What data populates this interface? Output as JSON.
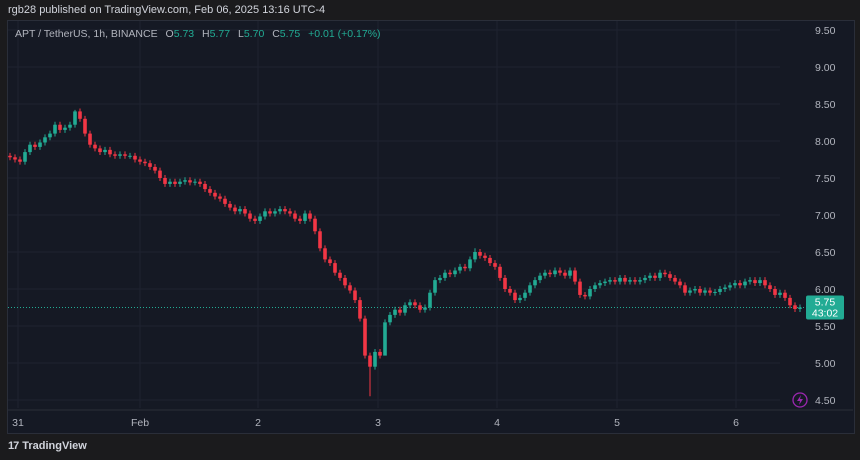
{
  "header": {
    "published": "rgb28 published on TradingView.com, Feb 06, 2025 13:16 UTC-4"
  },
  "legend": {
    "symbol": "APT / TetherUS, 1h, BINANCE",
    "o_label": "O",
    "o": "5.73",
    "h_label": "H",
    "h": "5.77",
    "l_label": "L",
    "l": "5.70",
    "c_label": "C",
    "c": "5.75",
    "change": "+0.01 (+0.17%)"
  },
  "price_tag": {
    "price": "5.75",
    "countdown": "43:02"
  },
  "footer": {
    "brand": "TradingView"
  },
  "colors": {
    "up": "#22ab94",
    "down": "#f23645",
    "bg": "#151924",
    "tag": "#22ab94",
    "bolt": "#9c27b0"
  },
  "chart_data": {
    "type": "candlestick",
    "title": "APT / TetherUS, 1h, BINANCE",
    "ylim": [
      4.3,
      9.6
    ],
    "y_ticks": [
      "9.50",
      "9.00",
      "8.50",
      "8.00",
      "7.50",
      "7.00",
      "6.50",
      "6.00",
      "5.50",
      "5.00",
      "4.50"
    ],
    "x_ticks": [
      {
        "label": "31",
        "index": 1.6
      },
      {
        "label": "Feb",
        "index": 26
      },
      {
        "label": "2",
        "index": 49.6
      },
      {
        "label": "3",
        "index": 73.6
      },
      {
        "label": "4",
        "index": 97.4
      },
      {
        "label": "5",
        "index": 121.4
      },
      {
        "label": "6",
        "index": 145.2
      }
    ],
    "open_first": 7.8,
    "closes": [
      7.78,
      7.75,
      7.72,
      7.85,
      7.95,
      7.92,
      7.98,
      8.05,
      8.1,
      8.22,
      8.15,
      8.18,
      8.22,
      8.4,
      8.3,
      8.1,
      7.95,
      7.9,
      7.85,
      7.88,
      7.82,
      7.8,
      7.82,
      7.8,
      7.8,
      7.75,
      7.72,
      7.7,
      7.65,
      7.6,
      7.5,
      7.42,
      7.45,
      7.42,
      7.45,
      7.47,
      7.44,
      7.45,
      7.42,
      7.35,
      7.3,
      7.25,
      7.22,
      7.15,
      7.1,
      7.05,
      7.08,
      7.02,
      6.95,
      6.92,
      6.98,
      7.05,
      7.02,
      7.05,
      7.08,
      7.05,
      7.02,
      6.95,
      6.92,
      7.02,
      6.95,
      6.78,
      6.55,
      6.4,
      6.35,
      6.22,
      6.15,
      6.05,
      5.98,
      5.85,
      5.6,
      5.1,
      4.95,
      5.15,
      5.1,
      5.55,
      5.65,
      5.72,
      5.68,
      5.78,
      5.82,
      5.78,
      5.72,
      5.75,
      5.95,
      6.12,
      6.15,
      6.22,
      6.2,
      6.25,
      6.3,
      6.28,
      6.4,
      6.5,
      6.45,
      6.42,
      6.35,
      6.3,
      6.15,
      6.0,
      5.95,
      5.85,
      5.88,
      5.95,
      6.05,
      6.12,
      6.18,
      6.22,
      6.2,
      6.25,
      6.22,
      6.18,
      6.25,
      6.1,
      5.92,
      5.9,
      6.0,
      6.05,
      6.08,
      6.1,
      6.12,
      6.1,
      6.15,
      6.1,
      6.12,
      6.1,
      6.12,
      6.15,
      6.18,
      6.15,
      6.22,
      6.2,
      6.15,
      6.1,
      6.05,
      5.95,
      5.98,
      6.0,
      5.95,
      5.98,
      5.95,
      5.96,
      6.0,
      6.02,
      6.05,
      6.08,
      6.05,
      6.1,
      6.12,
      6.08,
      6.12,
      6.05,
      6.0,
      5.92,
      5.95,
      5.88,
      5.78,
      5.73,
      5.75
    ],
    "wick_extremes": [
      {
        "index": 72,
        "low": 4.55
      },
      {
        "index": 13,
        "high": 8.42
      },
      {
        "index": 93,
        "high": 6.55
      },
      {
        "index": 75,
        "low": 5.55
      }
    ],
    "last_price": 5.75
  }
}
